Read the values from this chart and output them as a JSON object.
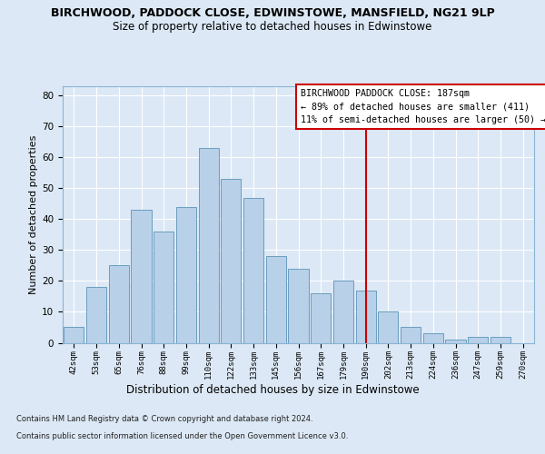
{
  "title": "BIRCHWOOD, PADDOCK CLOSE, EDWINSTOWE, MANSFIELD, NG21 9LP",
  "subtitle": "Size of property relative to detached houses in Edwinstowe",
  "xlabel": "Distribution of detached houses by size in Edwinstowe",
  "ylabel": "Number of detached properties",
  "footer_line1": "Contains HM Land Registry data © Crown copyright and database right 2024.",
  "footer_line2": "Contains public sector information licensed under the Open Government Licence v3.0.",
  "annotation_line1": "BIRCHWOOD PADDOCK CLOSE: 187sqm",
  "annotation_line2": "← 89% of detached houses are smaller (411)",
  "annotation_line3": "11% of semi-detached houses are larger (50) →",
  "bar_labels": [
    "42sqm",
    "53sqm",
    "65sqm",
    "76sqm",
    "88sqm",
    "99sqm",
    "110sqm",
    "122sqm",
    "133sqm",
    "145sqm",
    "156sqm",
    "167sqm",
    "179sqm",
    "190sqm",
    "202sqm",
    "213sqm",
    "224sqm",
    "236sqm",
    "247sqm",
    "259sqm",
    "270sqm"
  ],
  "bar_values": [
    5,
    18,
    25,
    43,
    36,
    44,
    63,
    53,
    47,
    28,
    24,
    16,
    20,
    17,
    10,
    5,
    3,
    1,
    2,
    2,
    0
  ],
  "bar_color": "#b8d0e8",
  "bar_edgecolor": "#6a9ec0",
  "vline_x": 13.0,
  "vline_color": "#cc0000",
  "ylim": [
    0,
    83
  ],
  "yticks": [
    0,
    10,
    20,
    30,
    40,
    50,
    60,
    70,
    80
  ],
  "bg_color": "#dce8f5",
  "plot_bg_color": "#dce8f5",
  "grid_color": "#ffffff",
  "title_fontsize": 9,
  "subtitle_fontsize": 8.5,
  "xlabel_fontsize": 8.5,
  "ylabel_fontsize": 8
}
